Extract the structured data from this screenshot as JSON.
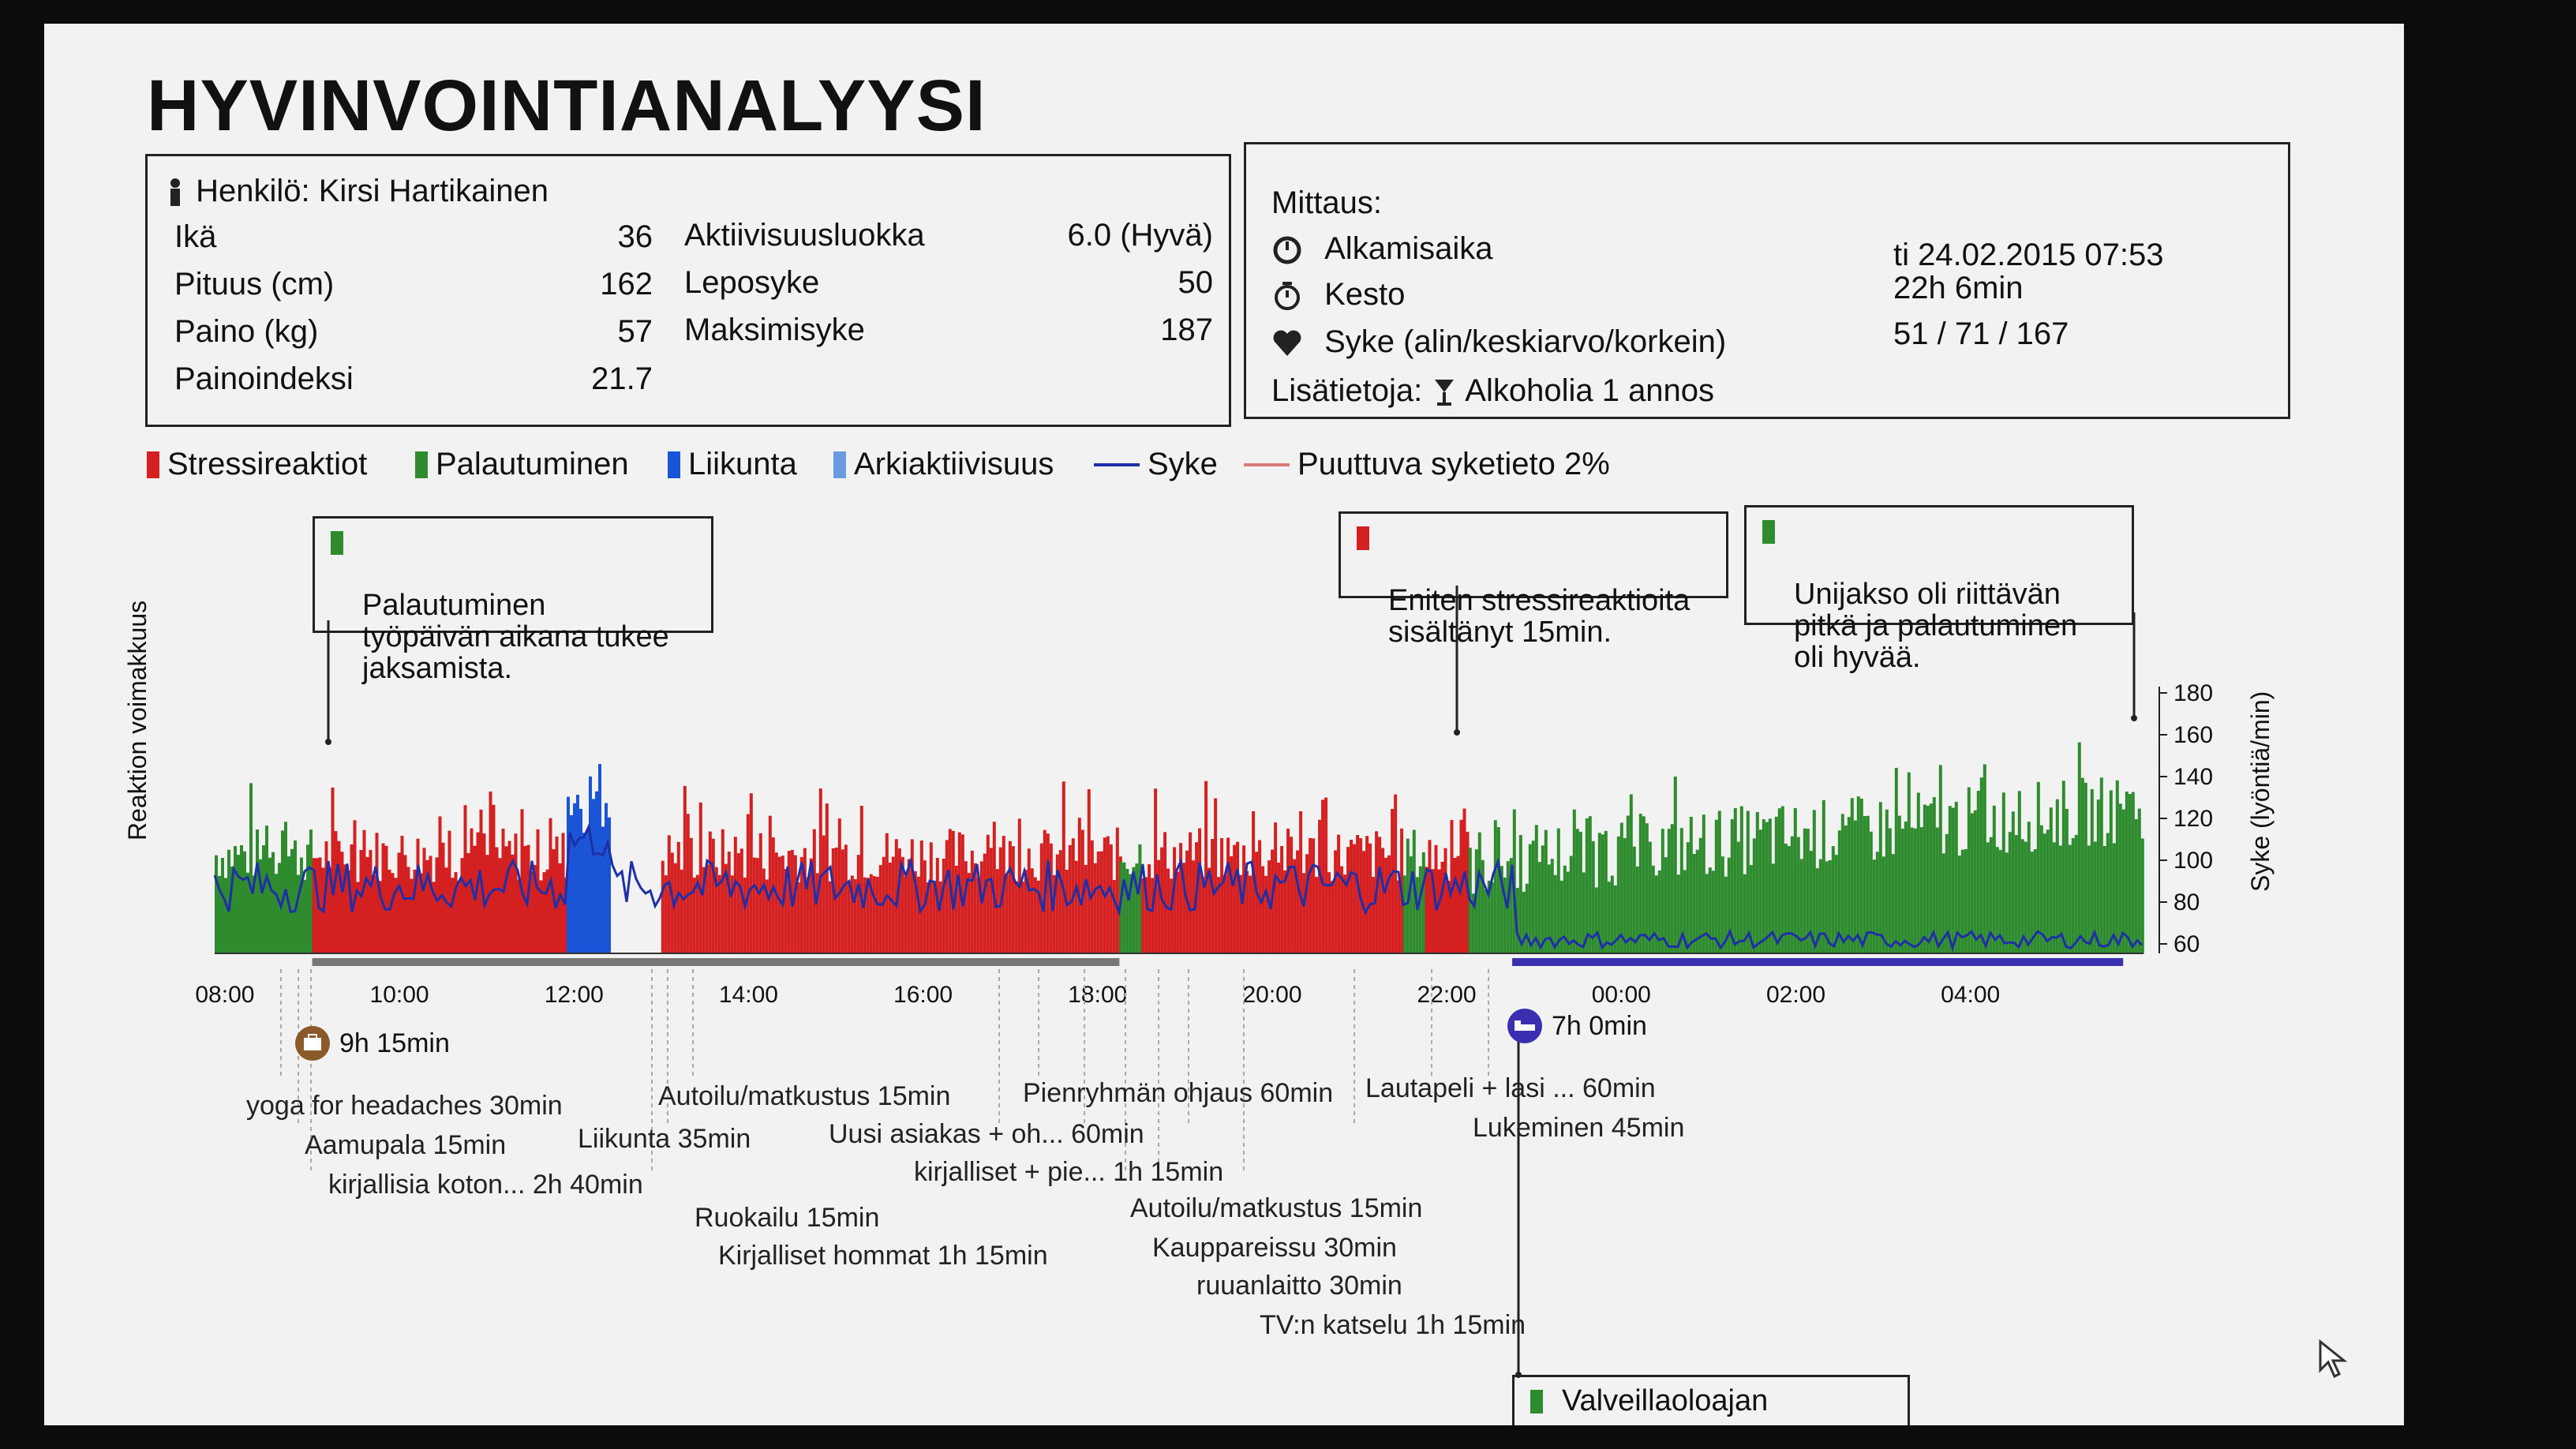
{
  "title": "HYVINVOINTIANALYYSI",
  "person": {
    "name_label": "Henkilö: Kirsi Hartikainen",
    "rows_left": [
      {
        "label": "Ikä",
        "value": "36"
      },
      {
        "label": "Pituus (cm)",
        "value": "162"
      },
      {
        "label": "Paino (kg)",
        "value": "57"
      },
      {
        "label": "Painoindeksi",
        "value": "21.7"
      }
    ],
    "rows_right": [
      {
        "label": "Aktiivisuusluokka",
        "value": "6.0 (Hyvä)"
      },
      {
        "label": "Leposyke",
        "value": "50"
      },
      {
        "label": "Maksimisyke",
        "value": "187"
      }
    ]
  },
  "measurement": {
    "heading": "Mittaus:",
    "start_label": "Alkamisaika",
    "start_value": "ti 24.02.2015 07:53",
    "duration_label": "Kesto",
    "duration_value": "22h 6min",
    "hr_label": "Syke (alin/keskiarvo/korkein)",
    "hr_value": "51 / 71 / 167",
    "extra_label": "Lisätietoja:",
    "extra_value": "Alkoholia 1 annos"
  },
  "legend": [
    {
      "label": "Stressireaktiot",
      "color": "#d42020",
      "kind": "bar"
    },
    {
      "label": "Palautuminen",
      "color": "#2e8b2e",
      "kind": "bar"
    },
    {
      "label": "Liikunta",
      "color": "#1a55d8",
      "kind": "bar"
    },
    {
      "label": "Arkiaktiivisuus",
      "color": "#6a9be0",
      "kind": "bar"
    },
    {
      "label": "Syke",
      "color": "#1f2fa8",
      "kind": "line"
    },
    {
      "label": "Puuttuva syketieto 2%",
      "color": "#d87a7a",
      "kind": "line"
    }
  ],
  "callouts": [
    {
      "text": "Palautuminen\ntyöpäivän aikana tukee\njaksamista.",
      "color": "#2e8b2e"
    },
    {
      "text": "Eniten stressireaktioita\nsisältänyt 15min.",
      "color": "#d42020"
    },
    {
      "text": "Unijakso oli riittävän\npitkä ja palautuminen\noli hyvää.",
      "color": "#2e8b2e"
    },
    {
      "text": "Valveillaoloajan",
      "color": "#2e8b2e"
    }
  ],
  "work_period": "9h 15min",
  "sleep_period": "7h 0min",
  "activities": [
    {
      "text": "yoga for headaches 30min"
    },
    {
      "text": "Aamupala 15min"
    },
    {
      "text": "kirjallisia koton... 2h 40min"
    },
    {
      "text": "Autoilu/matkustus 15min"
    },
    {
      "text": "Liikunta 35min"
    },
    {
      "text": "Uusi asiakas + oh... 60min"
    },
    {
      "text": "Pienryhmän ohjaus 60min"
    },
    {
      "text": "kirjalliset + pie... 1h 15min"
    },
    {
      "text": "Ruokailu 15min"
    },
    {
      "text": "Kirjalliset hommat 1h 15min"
    },
    {
      "text": "Autoilu/matkustus 15min"
    },
    {
      "text": "Kauppareissu 30min"
    },
    {
      "text": "ruuanlaitto 30min"
    },
    {
      "text": "TV:n katselu 1h 15min"
    },
    {
      "text": "Lautapeli + lasi ... 60min"
    },
    {
      "text": "Lukeminen 45min"
    }
  ],
  "chart_data": {
    "type": "bar",
    "ylabel_left": "Reaktion voimakkuus",
    "ylabel_right": "Syke (lyöntiä/min)",
    "y_right_ticks": [
      "180",
      "160",
      "140",
      "120",
      "100",
      "80",
      "60"
    ],
    "y_right_range": [
      60,
      180
    ],
    "x_ticks": [
      "08:00",
      "10:00",
      "12:00",
      "14:00",
      "16:00",
      "18:00",
      "20:00",
      "22:00",
      "00:00",
      "02:00",
      "04:00"
    ],
    "x_range_hours": [
      "07:53",
      "05:59"
    ],
    "segments": [
      {
        "category": "Palautuminen",
        "start": "07:53",
        "end": "09:00"
      },
      {
        "category": "Stressireaktiot",
        "start": "09:00",
        "end": "11:55"
      },
      {
        "category": "Liikunta",
        "start": "11:55",
        "end": "12:25"
      },
      {
        "category": "Arkiaktiivisuus",
        "start": "12:25",
        "end": "13:00"
      },
      {
        "category": "Stressireaktiot",
        "start": "13:00",
        "end": "18:15"
      },
      {
        "category": "Palautuminen",
        "start": "18:15",
        "end": "18:30"
      },
      {
        "category": "Stressireaktiot",
        "start": "18:30",
        "end": "21:30"
      },
      {
        "category": "Palautuminen",
        "start": "21:30",
        "end": "21:45"
      },
      {
        "category": "Stressireaktiot",
        "start": "21:45",
        "end": "22:15"
      },
      {
        "category": "Palautuminen",
        "start": "22:15",
        "end": "05:59"
      }
    ],
    "series": [
      {
        "name": "Syke",
        "note": "heart rate line, approx 60–110 bpm by day, ~60–70 bpm at night"
      }
    ],
    "grid": false,
    "legend_position": "top"
  }
}
